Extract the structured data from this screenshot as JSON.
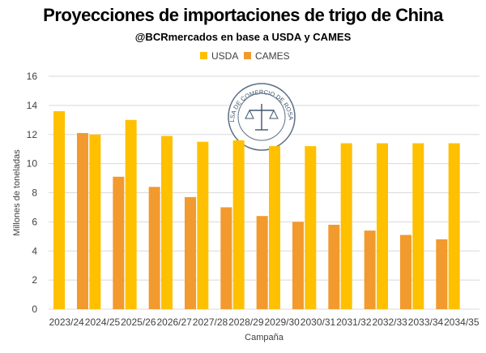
{
  "title": "Proyecciones de importaciones de trigo de China",
  "subtitle": "@BCRmercados en base a USDA y CAMES",
  "watermark_text": "BOLSA DE COMERCIO DE ROSARIO",
  "colors": {
    "usda": "#FFC000",
    "cames": "#F29A2E",
    "grid": "#D9D9D9",
    "text": "#404040"
  },
  "chart_data": {
    "type": "bar",
    "title": "Proyecciones de importaciones de trigo de China",
    "subtitle": "@BCRmercados en base a USDA y CAMES",
    "xlabel": "Campaña",
    "ylabel": "Millones de toneladas",
    "ylim": [
      0,
      16
    ],
    "yticks": [
      0,
      2,
      4,
      6,
      8,
      10,
      12,
      14,
      16
    ],
    "grid": true,
    "legend_position": "top-center",
    "categories": [
      "2023/24",
      "2024/25",
      "2025/26",
      "2026/27",
      "2027/28",
      "2028/29",
      "2029/30",
      "2030/31",
      "2031/32",
      "2032/33",
      "2033/34",
      "2034/35"
    ],
    "series": [
      {
        "name": "USDA",
        "color": "#FFC000",
        "values": [
          13.6,
          12.0,
          13.0,
          11.9,
          11.5,
          11.6,
          11.2,
          11.2,
          11.4,
          11.4,
          11.4,
          11.4
        ]
      },
      {
        "name": "CAMES",
        "color": "#F29A2E",
        "values": [
          12.1,
          9.1,
          8.4,
          7.7,
          7.0,
          6.4,
          6.0,
          5.8,
          5.4,
          5.1,
          4.8,
          null
        ]
      }
    ]
  }
}
